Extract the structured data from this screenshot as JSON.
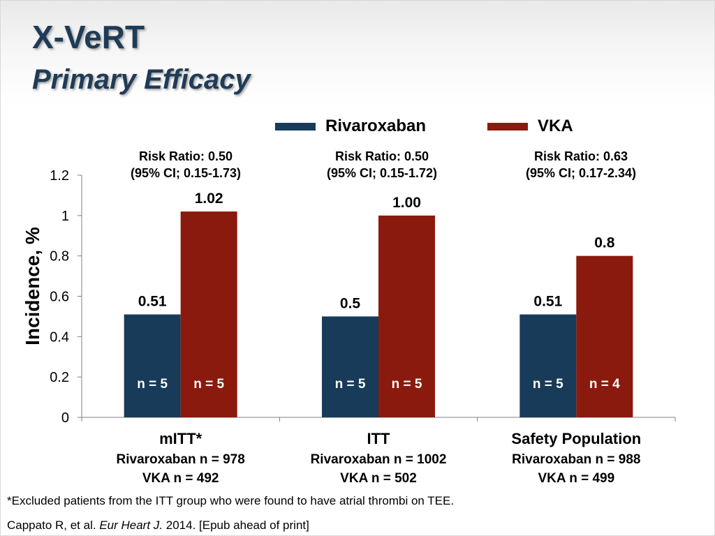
{
  "slide": {
    "title": "X-VeRT",
    "subtitle": "Primary Efficacy",
    "footnote": "*Excluded patients from the ITT group who were found to have atrial thrombi on TEE.",
    "citation_authors": "Cappato R, et al.",
    "citation_journal": "Eur Heart J.",
    "citation_rest": "2014. [Epub ahead of print]"
  },
  "legend": [
    {
      "name": "Rivaroxaban",
      "color": "#173b59"
    },
    {
      "name": "VKA",
      "color": "#8b1a0e"
    }
  ],
  "risk_ratios": [
    {
      "line1": "Risk Ratio: 0.50",
      "line2": "(95% CI; 0.15-1.73)"
    },
    {
      "line1": "Risk Ratio: 0.50",
      "line2": "(95% CI; 0.15-1.72)"
    },
    {
      "line1": "Risk Ratio: 0.63",
      "line2": "(95% CI; 0.17-2.34)"
    }
  ],
  "chart_data": {
    "type": "bar",
    "ylabel": "Incidence, %",
    "ylim": [
      0,
      1.2
    ],
    "yticks": [
      0,
      0.2,
      0.4,
      0.6,
      0.8,
      1,
      1.2
    ],
    "ytick_labels": [
      "0",
      "0.2",
      "0.4",
      "0.6",
      "0.8",
      "1",
      "1.2"
    ],
    "grid": false,
    "legend_position": "top",
    "categories": [
      "mITT*",
      "ITT",
      "Safety Population"
    ],
    "category_sublabels": [
      [
        "Rivaroxaban n = 978",
        "VKA n = 492"
      ],
      [
        "Rivaroxaban n = 1002",
        "VKA n = 502"
      ],
      [
        "Rivaroxaban n = 988",
        "VKA n = 499"
      ]
    ],
    "series": [
      {
        "name": "Rivaroxaban",
        "color": "#173b59",
        "values": [
          0.51,
          0.5,
          0.51
        ],
        "value_labels": [
          "0.51",
          "0.5",
          "0.51"
        ],
        "n_labels": [
          "n = 5",
          "n = 5",
          "n = 5"
        ]
      },
      {
        "name": "VKA",
        "color": "#8b1a0e",
        "values": [
          1.02,
          1.0,
          0.8
        ],
        "value_labels": [
          "1.02",
          "1.00",
          "0.8"
        ],
        "n_labels": [
          "n = 5",
          "n = 5",
          "n = 4"
        ]
      }
    ]
  }
}
